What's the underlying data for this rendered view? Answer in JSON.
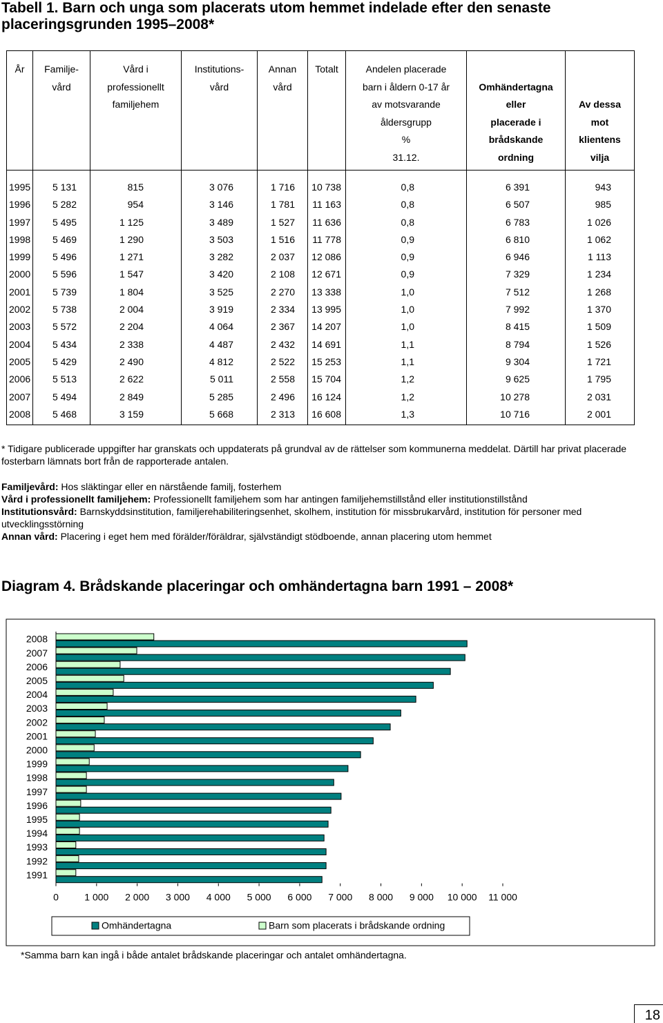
{
  "header": {
    "title": "Tabell 1. Barn och unga som placerats utom hemmet indelade efter den senaste placeringsgrunden 1995–2008*"
  },
  "table": {
    "header": [
      [
        "År"
      ],
      [
        "Familje-",
        "vård"
      ],
      [
        "Vård i",
        "professionellt",
        "familjehem"
      ],
      [
        "Institutions-",
        "vård"
      ],
      [
        "Annan",
        "vård"
      ],
      [
        "Totalt"
      ],
      [
        "Andelen placerade",
        "barn i åldern 0-17 år",
        "av motsvarande",
        "åldersgrupp",
        "%",
        "31.12."
      ],
      [
        "Omhändertagna",
        "eller",
        "placerade i",
        "brådskande",
        "ordning"
      ],
      [
        "Av dessa",
        "mot",
        "klientens",
        "vilja"
      ]
    ],
    "rows": [
      [
        "1995",
        "5 131",
        "815",
        "3 076",
        "1 716",
        "10 738",
        "0,8",
        "6 391",
        "943"
      ],
      [
        "1996",
        "5 282",
        "954",
        "3 146",
        "1 781",
        "11 163",
        "0,8",
        "6 507",
        "985"
      ],
      [
        "1997",
        "5 495",
        "1 125",
        "3 489",
        "1 527",
        "11 636",
        "0,8",
        "6 783",
        "1 026"
      ],
      [
        "1998",
        "5 469",
        "1 290",
        "3 503",
        "1 516",
        "11 778",
        "0,9",
        "6 810",
        "1 062"
      ],
      [
        "1999",
        "5 496",
        "1 271",
        "3 282",
        "2 037",
        "12 086",
        "0,9",
        "6 946",
        "1 113"
      ],
      [
        "2000",
        "5 596",
        "1 547",
        "3 420",
        "2 108",
        "12 671",
        "0,9",
        "7 329",
        "1 234"
      ],
      [
        "2001",
        "5 739",
        "1 804",
        "3 525",
        "2 270",
        "13 338",
        "1,0",
        "7 512",
        "1 268"
      ],
      [
        "2002",
        "5 738",
        "2 004",
        "3 919",
        "2 334",
        "13 995",
        "1,0",
        "7 992",
        "1 370"
      ],
      [
        "2003",
        "5 572",
        "2 204",
        "4 064",
        "2 367",
        "14 207",
        "1,0",
        "8 415",
        "1 509"
      ],
      [
        "2004",
        "5 434",
        "2 338",
        "4 487",
        "2 432",
        "14 691",
        "1,1",
        "8 794",
        "1 526"
      ],
      [
        "2005",
        "5 429",
        "2 490",
        "4 812",
        "2 522",
        "15 253",
        "1,1",
        "9 304",
        "1 721"
      ],
      [
        "2006",
        "5 513",
        "2 622",
        "5 011",
        "2 558",
        "15 704",
        "1,2",
        "9 625",
        "1 795"
      ],
      [
        "2007",
        "5 494",
        "2 849",
        "5 285",
        "2 496",
        "16 124",
        "1,2",
        "10 278",
        "2 031"
      ],
      [
        "2008",
        "5 468",
        "3 159",
        "5 668",
        "2 313",
        "16 608",
        "1,3",
        "10 716",
        "2 001"
      ]
    ]
  },
  "note": "* Tidigare publicerade uppgifter har granskats och uppdaterats på grundval av de rättelser som kommunerna meddelat. Därtill har privat placerade fosterbarn lämnats bort från de rapporterade antalen.",
  "definitions": [
    {
      "term": "Familjevård:",
      "text": "Hos släktingar eller en närstående familj, fosterhem"
    },
    {
      "term": "Vård i professionellt familjehem:",
      "text": "Professionellt familjehem som har antingen familjehemstillstånd eller institutionstillstånd"
    },
    {
      "term": "Institutionsvård:",
      "text": "Barnskyddsinstitution, familjerehabiliteringsenhet, skolhem, institution för missbrukarvård, institution för personer med utvecklingsstörning"
    },
    {
      "term": "Annan vård:",
      "text": "Placering i eget hem med förälder/föräldrar, självständigt stödboende, annan placering utom hemmet"
    }
  ],
  "chart_data": {
    "type": "bar",
    "orientation": "horizontal",
    "title": "Diagram 4. Brådskande placeringar och omhändertagna barn 1991 – 2008*",
    "categories": [
      "2008",
      "2007",
      "2006",
      "2005",
      "2004",
      "2003",
      "2002",
      "2001",
      "2000",
      "1999",
      "1998",
      "1997",
      "1996",
      "1995",
      "1994",
      "1993",
      "1992",
      "1991"
    ],
    "series": [
      {
        "name": "Omhändertagna",
        "color": "#008080",
        "values": [
          10120,
          10070,
          9710,
          9290,
          8860,
          8490,
          8230,
          7810,
          7500,
          7190,
          6840,
          7020,
          6770,
          6700,
          6600,
          6650,
          6650,
          6550
        ]
      },
      {
        "name": "Barn som placerats i brådskande ordning",
        "color": "#ccffcc",
        "values": [
          2410,
          1990,
          1580,
          1670,
          1410,
          1260,
          1190,
          970,
          940,
          820,
          750,
          750,
          610,
          580,
          580,
          490,
          560,
          490
        ]
      }
    ],
    "xlim": [
      0,
      11000
    ],
    "xticks": [
      0,
      {
        "value": 1000,
        "label": "1 000"
      },
      {
        "value": 2000,
        "label": "2 000"
      },
      {
        "value": 3000,
        "label": "3 000"
      },
      {
        "value": 4000,
        "label": "4 000"
      },
      {
        "value": 5000,
        "label": "5 000"
      },
      {
        "value": 6000,
        "label": "6 000"
      },
      {
        "value": 7000,
        "label": "7 000"
      },
      {
        "value": 8000,
        "label": "8 000"
      },
      {
        "value": 9000,
        "label": "9 000"
      },
      {
        "value": 10000,
        "label": "10 000"
      },
      {
        "value": 11000,
        "label": "11 000"
      }
    ],
    "grid": false,
    "legend": "bottom",
    "footnote": "*Samma barn kan ingå i både antalet brådskande placeringar och antalet omhändertagna."
  },
  "page_number": "18"
}
